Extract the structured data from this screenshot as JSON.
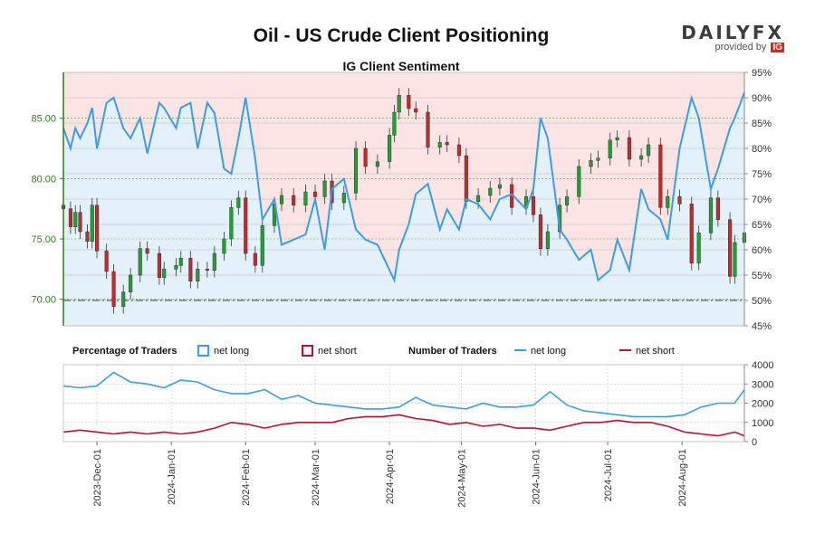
{
  "title": "Oil - US Crude Client Positioning",
  "subtitle": "IG Client Sentiment",
  "brand": {
    "name": "DAILYFX",
    "tagline": "provided by",
    "partner": "IG"
  },
  "legend": {
    "pct_heading": "Percentage of Traders",
    "num_heading": "Number of Traders",
    "net_long": "net long",
    "net_short": "net short"
  },
  "colors": {
    "long": "#3a9ee4",
    "short": "#c00e2c",
    "long_fill": "#e3f1fb",
    "short_fill": "#fde4e4",
    "candle_up": "#22a033",
    "candle_down": "#c8272b",
    "axis_left": "#2e7d1e",
    "baseline": "#6b7a86"
  },
  "chart_data": [
    {
      "type": "line",
      "title": "IG Client Sentiment",
      "left_axis": {
        "ticks": [
          "70.00",
          "75.00",
          "80.00",
          "85.00"
        ],
        "range": [
          67.8,
          88.8
        ]
      },
      "right_axis": {
        "ticks": [
          "45%",
          "50%",
          "55%",
          "60%",
          "65%",
          "70%",
          "75%",
          "80%",
          "85%",
          "90%",
          "95%"
        ],
        "range": [
          45,
          95
        ]
      },
      "reference_line": 50,
      "series": [
        {
          "name": "net long",
          "axis": "right",
          "x": [
            "2023-11-17",
            "2023-11-20",
            "2023-11-22",
            "2023-11-24",
            "2023-11-27",
            "2023-11-29",
            "2023-12-01",
            "2023-12-05",
            "2023-12-08",
            "2023-12-12",
            "2023-12-15",
            "2023-12-19",
            "2023-12-22",
            "2023-12-27",
            "2023-12-29",
            "2024-01-03",
            "2024-01-05",
            "2024-01-09",
            "2024-01-12",
            "2024-01-16",
            "2024-01-19",
            "2024-01-23",
            "2024-01-26",
            "2024-01-29",
            "2024-02-01",
            "2024-02-05",
            "2024-02-08",
            "2024-02-13",
            "2024-02-16",
            "2024-02-21",
            "2024-02-26",
            "2024-03-01",
            "2024-03-05",
            "2024-03-08",
            "2024-03-13",
            "2024-03-18",
            "2024-03-22",
            "2024-03-27",
            "2024-04-01",
            "2024-04-03",
            "2024-04-05",
            "2024-04-09",
            "2024-04-12",
            "2024-04-17",
            "2024-04-22",
            "2024-04-25",
            "2024-04-30",
            "2024-05-03",
            "2024-05-08",
            "2024-05-13",
            "2024-05-17",
            "2024-05-22",
            "2024-05-28",
            "2024-05-31",
            "2024-06-03",
            "2024-06-06",
            "2024-06-11",
            "2024-06-14",
            "2024-06-19",
            "2024-06-24",
            "2024-06-27",
            "2024-07-02",
            "2024-07-05",
            "2024-07-10",
            "2024-07-15",
            "2024-07-18",
            "2024-07-23",
            "2024-07-26",
            "2024-07-31",
            "2024-08-05",
            "2024-08-08",
            "2024-08-13",
            "2024-08-16",
            "2024-08-21",
            "2024-08-23",
            "2024-08-27"
          ],
          "values": [
            84,
            80,
            84,
            82,
            85,
            88,
            80,
            89,
            90,
            84,
            82,
            86,
            79,
            89,
            88,
            84,
            88,
            89,
            80,
            89,
            87,
            76,
            75,
            82,
            90,
            78,
            66,
            70,
            61,
            62,
            63,
            70,
            60,
            72,
            74,
            64,
            62,
            61,
            56,
            54,
            60,
            65,
            71,
            73,
            64,
            68,
            64,
            70,
            69,
            66,
            70,
            71,
            68,
            72,
            86,
            82,
            64,
            62,
            58,
            60,
            54,
            56,
            62,
            56,
            72,
            68,
            66,
            62,
            80,
            90,
            86,
            72,
            76,
            84,
            86,
            91
          ]
        },
        {
          "name": "Oil - US Crude",
          "axis": "left",
          "x": [
            "2023-11-17",
            "2023-11-20",
            "2023-11-22",
            "2023-11-24",
            "2023-11-27",
            "2023-11-29",
            "2023-12-01",
            "2023-12-05",
            "2023-12-08",
            "2023-12-12",
            "2023-12-15",
            "2023-12-19",
            "2023-12-22",
            "2023-12-27",
            "2023-12-29",
            "2024-01-03",
            "2024-01-05",
            "2024-01-09",
            "2024-01-12",
            "2024-01-16",
            "2024-01-19",
            "2024-01-23",
            "2024-01-26",
            "2024-01-29",
            "2024-02-01",
            "2024-02-05",
            "2024-02-08",
            "2024-02-13",
            "2024-02-16",
            "2024-02-21",
            "2024-02-26",
            "2024-03-01",
            "2024-03-05",
            "2024-03-08",
            "2024-03-13",
            "2024-03-18",
            "2024-03-22",
            "2024-03-27",
            "2024-04-01",
            "2024-04-03",
            "2024-04-05",
            "2024-04-09",
            "2024-04-12",
            "2024-04-17",
            "2024-04-22",
            "2024-04-25",
            "2024-04-30",
            "2024-05-03",
            "2024-05-08",
            "2024-05-13",
            "2024-05-17",
            "2024-05-22",
            "2024-05-28",
            "2024-05-31",
            "2024-06-03",
            "2024-06-06",
            "2024-06-11",
            "2024-06-14",
            "2024-06-19",
            "2024-06-24",
            "2024-06-27",
            "2024-07-02",
            "2024-07-05",
            "2024-07-10",
            "2024-07-15",
            "2024-07-18",
            "2024-07-23",
            "2024-07-26",
            "2024-07-31",
            "2024-08-05",
            "2024-08-08",
            "2024-08-13",
            "2024-08-16",
            "2024-08-21",
            "2024-08-23",
            "2024-08-27"
          ],
          "values": [
            77.5,
            76.0,
            77.2,
            75.6,
            74.8,
            77.8,
            74.0,
            72.3,
            69.4,
            70.6,
            72.0,
            74.2,
            73.8,
            71.8,
            72.5,
            72.8,
            73.4,
            71.5,
            72.5,
            72.4,
            73.8,
            75.0,
            77.6,
            78.4,
            73.8,
            72.8,
            76.1,
            77.9,
            78.6,
            77.8,
            78.9,
            78.5,
            79.8,
            78.0,
            78.8,
            82.5,
            81.0,
            81.4,
            83.6,
            85.5,
            86.9,
            85.8,
            85.5,
            82.6,
            83.0,
            82.8,
            81.9,
            78.1,
            78.6,
            79.2,
            79.5,
            77.6,
            78.5,
            77.0,
            74.2,
            75.6,
            77.8,
            78.5,
            81.0,
            81.5,
            81.7,
            83.2,
            83.4,
            81.6,
            81.9,
            82.8,
            77.6,
            78.5,
            77.9,
            73.0,
            75.5,
            78.4,
            76.6,
            71.9,
            74.7,
            75.5
          ]
        }
      ]
    },
    {
      "type": "line",
      "title": "",
      "right_axis": {
        "ticks": [
          "0",
          "1000",
          "2000",
          "3000",
          "4000"
        ],
        "range": [
          0,
          4000
        ]
      },
      "x_ticks": [
        "2023-Dec-01",
        "2024-Jan-01",
        "2024-Feb-01",
        "2024-Mar-01",
        "2024-Apr-01",
        "2024-May-01",
        "2024-Jun-01",
        "2024-Jul-01",
        "2024-Aug-01"
      ],
      "series": [
        {
          "name": "net long",
          "x": [
            "2023-11-17",
            "2023-11-24",
            "2023-12-01",
            "2023-12-08",
            "2023-12-15",
            "2023-12-22",
            "2023-12-29",
            "2024-01-05",
            "2024-01-12",
            "2024-01-19",
            "2024-01-26",
            "2024-02-02",
            "2024-02-09",
            "2024-02-16",
            "2024-02-23",
            "2024-03-01",
            "2024-03-08",
            "2024-03-15",
            "2024-03-22",
            "2024-03-29",
            "2024-04-05",
            "2024-04-12",
            "2024-04-19",
            "2024-04-26",
            "2024-05-03",
            "2024-05-10",
            "2024-05-17",
            "2024-05-24",
            "2024-05-31",
            "2024-06-07",
            "2024-06-14",
            "2024-06-21",
            "2024-06-28",
            "2024-07-05",
            "2024-07-12",
            "2024-07-19",
            "2024-07-26",
            "2024-08-02",
            "2024-08-09",
            "2024-08-16",
            "2024-08-23",
            "2024-08-27"
          ],
          "values": [
            2900,
            2800,
            2900,
            3600,
            3100,
            3000,
            2800,
            3200,
            3100,
            2700,
            2500,
            2500,
            2700,
            2200,
            2400,
            2000,
            1900,
            1800,
            1700,
            1700,
            1800,
            2300,
            1900,
            1800,
            1700,
            2000,
            1800,
            1800,
            1900,
            2600,
            1900,
            1600,
            1500,
            1400,
            1300,
            1300,
            1300,
            1400,
            1800,
            2000,
            2000,
            2700
          ]
        },
        {
          "name": "net short",
          "x": [
            "2023-11-17",
            "2023-11-24",
            "2023-12-01",
            "2023-12-08",
            "2023-12-15",
            "2023-12-22",
            "2023-12-29",
            "2024-01-05",
            "2024-01-12",
            "2024-01-19",
            "2024-01-26",
            "2024-02-02",
            "2024-02-09",
            "2024-02-16",
            "2024-02-23",
            "2024-03-01",
            "2024-03-08",
            "2024-03-15",
            "2024-03-22",
            "2024-03-29",
            "2024-04-05",
            "2024-04-12",
            "2024-04-19",
            "2024-04-26",
            "2024-05-03",
            "2024-05-10",
            "2024-05-17",
            "2024-05-24",
            "2024-05-31",
            "2024-06-07",
            "2024-06-14",
            "2024-06-21",
            "2024-06-28",
            "2024-07-05",
            "2024-07-12",
            "2024-07-19",
            "2024-07-26",
            "2024-08-02",
            "2024-08-09",
            "2024-08-16",
            "2024-08-23",
            "2024-08-27"
          ],
          "values": [
            500,
            600,
            500,
            400,
            500,
            400,
            500,
            400,
            500,
            700,
            1000,
            900,
            700,
            900,
            1000,
            1000,
            1000,
            1200,
            1300,
            1300,
            1400,
            1200,
            1100,
            900,
            1000,
            800,
            900,
            700,
            700,
            600,
            800,
            1000,
            1000,
            1100,
            1000,
            1000,
            800,
            500,
            400,
            300,
            500,
            300
          ]
        }
      ]
    }
  ]
}
